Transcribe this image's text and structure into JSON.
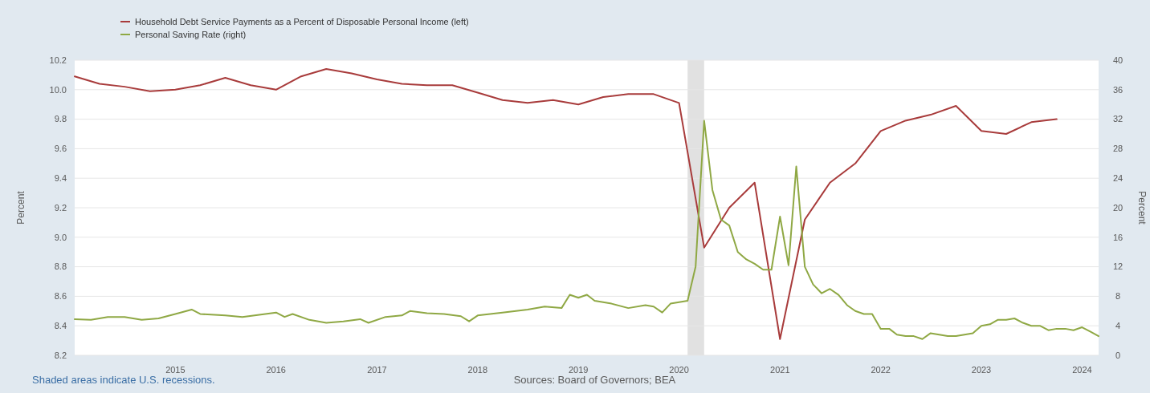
{
  "chart_data": {
    "type": "line",
    "ylabel": "Percent",
    "y2label": "Percent",
    "legend": "top left",
    "grid": "y",
    "xlim": [
      "2014-01-01",
      "2024-03-01"
    ],
    "xticks": [
      {
        "value": "2015-01-01",
        "label": "2015"
      },
      {
        "value": "2016-01-01",
        "label": "2016"
      },
      {
        "value": "2017-01-01",
        "label": "2017"
      },
      {
        "value": "2018-01-01",
        "label": "2018"
      },
      {
        "value": "2019-01-01",
        "label": "2019"
      },
      {
        "value": "2020-01-01",
        "label": "2020"
      },
      {
        "value": "2021-01-01",
        "label": "2021"
      },
      {
        "value": "2022-01-01",
        "label": "2022"
      },
      {
        "value": "2023-01-01",
        "label": "2023"
      },
      {
        "value": "2024-01-01",
        "label": "2024"
      }
    ],
    "ylim": [
      8.2,
      10.2
    ],
    "yticks": [
      8.2,
      8.4,
      8.6,
      8.8,
      {
        "value": 9,
        "label": "9.0"
      },
      9.2,
      9.4,
      9.6,
      9.8,
      {
        "value": 10,
        "label": "10.0"
      },
      10.2
    ],
    "y2lim": [
      0,
      40
    ],
    "y2ticks": [
      0,
      4,
      8,
      12,
      16,
      20,
      24,
      28,
      32,
      36,
      40
    ],
    "bands": [
      {
        "axis": "x",
        "from": "2020-02-01",
        "to": "2020-04-01",
        "color": "#e1e1e1"
      }
    ],
    "annotations": [
      "Shaded areas indicate U.S. recessions.",
      "Sources: Board of Governors; BEA"
    ],
    "series": [
      {
        "name": "Household Debt Service Payments as a Percent of Disposable Personal Income (left)",
        "color": "#a83b3b",
        "x": [
          "2014-01",
          "2014-04",
          "2014-07",
          "2014-10",
          "2015-01",
          "2015-04",
          "2015-07",
          "2015-10",
          "2016-01",
          "2016-04",
          "2016-07",
          "2016-10",
          "2017-01",
          "2017-04",
          "2017-07",
          "2017-10",
          "2018-01",
          "2018-04",
          "2018-07",
          "2018-10",
          "2019-01",
          "2019-04",
          "2019-07",
          "2019-10",
          "2020-01",
          "2020-04",
          "2020-07",
          "2020-10",
          "2021-01",
          "2021-04",
          "2021-07",
          "2021-10",
          "2022-01",
          "2022-04",
          "2022-07",
          "2022-10",
          "2023-01",
          "2023-04",
          "2023-07",
          "2023-10"
        ],
        "values": [
          10.09,
          10.04,
          10.02,
          9.99,
          10.0,
          10.03,
          10.08,
          10.03,
          10.0,
          10.09,
          10.14,
          10.11,
          10.07,
          10.04,
          10.03,
          10.03,
          9.98,
          9.93,
          9.91,
          9.93,
          9.9,
          9.95,
          9.97,
          9.97,
          9.91,
          8.93,
          9.2,
          9.37,
          8.31,
          9.12,
          9.37,
          9.5,
          9.72,
          9.79,
          9.83,
          9.89,
          9.72,
          9.7,
          9.78,
          9.8
        ]
      },
      {
        "name": "Personal Saving Rate (right)",
        "color": "#8fa844",
        "axis": "y2",
        "x": [
          "2014-01",
          "2014-03",
          "2014-05",
          "2014-07",
          "2014-09",
          "2014-11",
          "2015-01",
          "2015-03",
          "2015-04",
          "2015-07",
          "2015-09",
          "2015-11",
          "2016-01",
          "2016-02",
          "2016-03",
          "2016-05",
          "2016-07",
          "2016-09",
          "2016-11",
          "2016-12",
          "2017-02",
          "2017-04",
          "2017-05",
          "2017-07",
          "2017-09",
          "2017-11",
          "2017-12",
          "2018-01",
          "2018-04",
          "2018-07",
          "2018-09",
          "2018-11",
          "2018-12",
          "2019-01",
          "2019-02",
          "2019-03",
          "2019-05",
          "2019-07",
          "2019-09",
          "2019-10",
          "2019-11",
          "2019-12",
          "2020-02",
          "2020-03",
          "2020-04",
          "2020-05",
          "2020-06",
          "2020-07",
          "2020-08",
          "2020-09",
          "2020-10",
          "2020-11",
          "2020-12",
          "2021-01",
          "2021-02",
          "2021-03",
          "2021-04",
          "2021-05",
          "2021-06",
          "2021-07",
          "2021-08",
          "2021-09",
          "2021-10",
          "2021-11",
          "2021-12",
          "2022-01",
          "2022-02",
          "2022-03",
          "2022-04",
          "2022-05",
          "2022-06",
          "2022-07",
          "2022-08",
          "2022-09",
          "2022-10",
          "2022-11",
          "2022-12",
          "2023-01",
          "2023-02",
          "2023-03",
          "2023-04",
          "2023-05",
          "2023-06",
          "2023-07",
          "2023-08",
          "2023-09",
          "2023-10",
          "2023-11",
          "2023-12",
          "2024-01",
          "2024-02",
          "2024-03"
        ],
        "values": [
          4.9,
          4.8,
          5.2,
          5.2,
          4.8,
          5.0,
          5.6,
          6.2,
          5.6,
          5.4,
          5.2,
          5.5,
          5.8,
          5.2,
          5.6,
          4.8,
          4.4,
          4.6,
          4.9,
          4.4,
          5.2,
          5.4,
          6.0,
          5.7,
          5.6,
          5.3,
          4.6,
          5.4,
          5.8,
          6.2,
          6.6,
          6.4,
          8.2,
          7.8,
          8.2,
          7.4,
          7.0,
          6.4,
          6.8,
          6.6,
          5.8,
          7.0,
          7.4,
          12.0,
          31.8,
          22.4,
          18.4,
          17.6,
          14.0,
          13.0,
          12.4,
          11.6,
          11.6,
          18.8,
          12.2,
          25.6,
          12.0,
          9.6,
          8.4,
          9.0,
          8.2,
          6.8,
          6.0,
          5.6,
          5.6,
          3.6,
          3.6,
          2.8,
          2.6,
          2.6,
          2.2,
          3.0,
          2.8,
          2.6,
          2.6,
          2.8,
          3.0,
          4.0,
          4.2,
          4.8,
          4.8,
          5.0,
          4.4,
          4.0,
          4.0,
          3.4,
          3.6,
          3.6,
          3.4,
          3.8,
          3.2,
          2.6
        ]
      }
    ]
  }
}
